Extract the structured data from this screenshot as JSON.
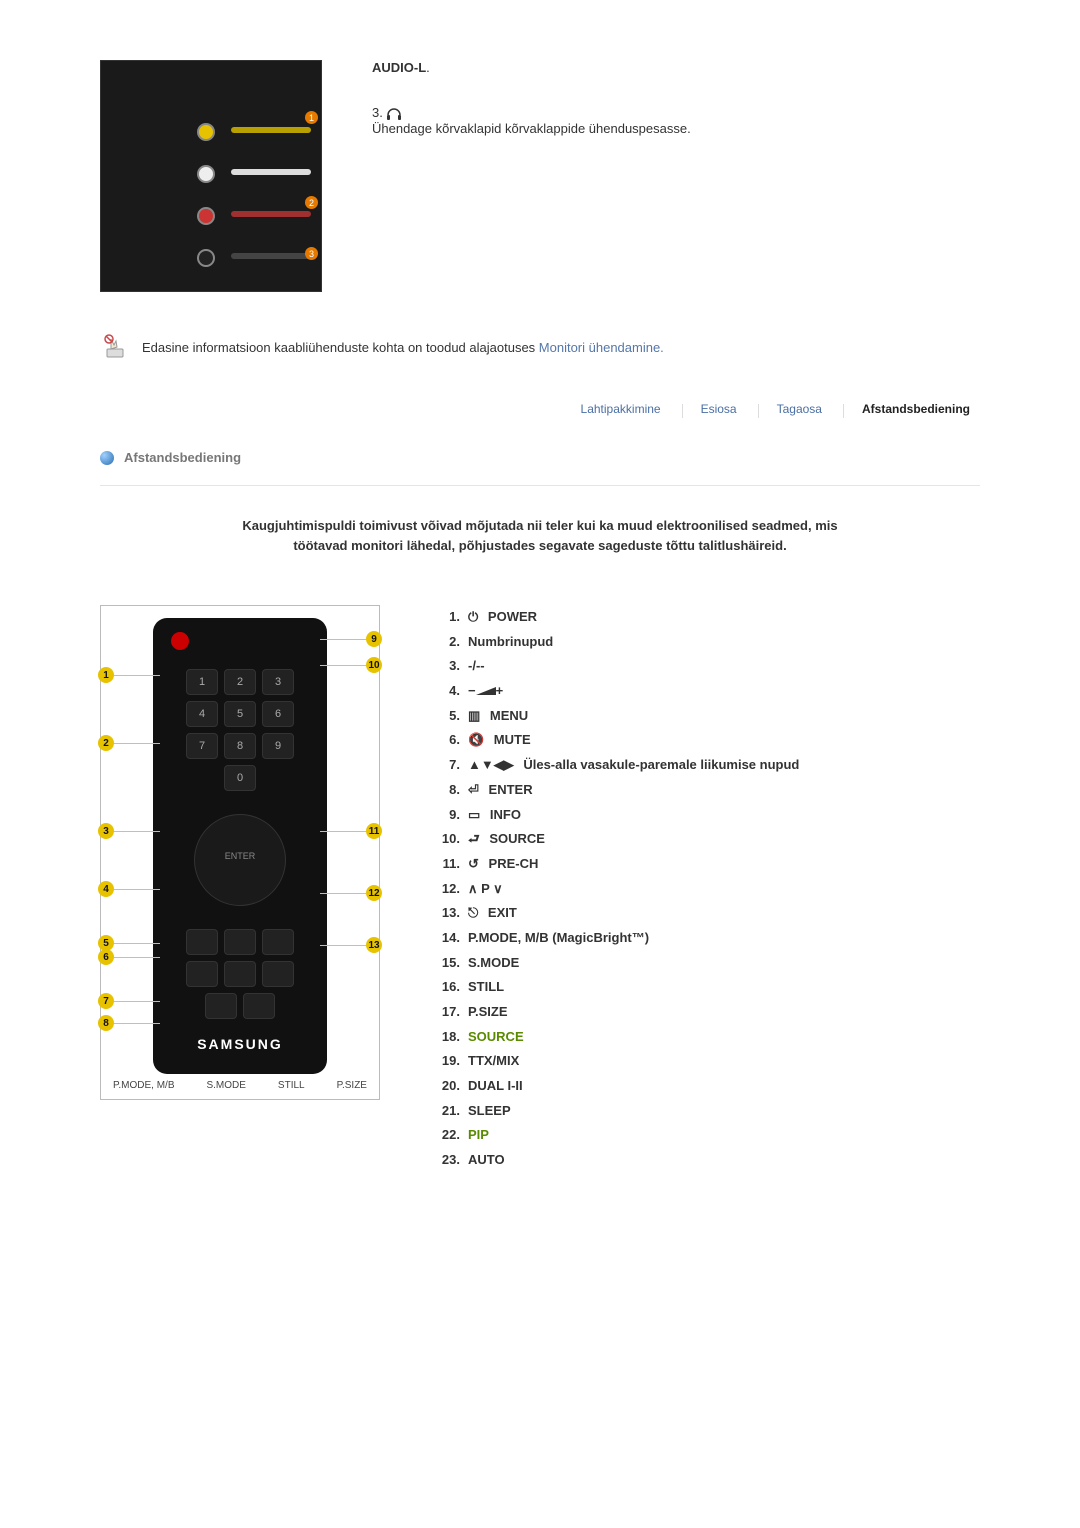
{
  "top": {
    "audio_title": "AUDIO-L",
    "suffix": ".",
    "step_number": "3.",
    "step_text": "Ühendage kõrvaklapid kõrvaklappide ühenduspesasse."
  },
  "note": {
    "prefix": "Edasine informatsioon kaabliühenduste kohta on toodud alajaotuses ",
    "link": "Monitori ühendamine.",
    "cursor_icon_color": "#c94a4a"
  },
  "tabs": {
    "items": [
      "Lahtipakkimine",
      "Esiosa",
      "Tagaosa",
      "Afstandsbediening"
    ],
    "active_index": 3
  },
  "section": {
    "title": "Afstandsbediening"
  },
  "intro": {
    "line1": "Kaugjuhtimispuldi toimivust võivad mõjutada nii teler kui ka muud elektroonilised seadmed, mis",
    "line2": "töötavad monitori lähedal, põhjustades segavate sageduste tõttu talitlushäireid."
  },
  "remote": {
    "brand": "SAMSUNG",
    "footer_labels": [
      "P.MODE, M/B",
      "S.MODE",
      "STILL",
      "P.SIZE"
    ],
    "left_markers": [
      1,
      2,
      3,
      4,
      5,
      6,
      7,
      8
    ],
    "right_markers": [
      9,
      10,
      11,
      12,
      13
    ],
    "nav_label": "ENTER",
    "nums": [
      "1",
      "2",
      "3",
      "4",
      "5",
      "6",
      "7",
      "8",
      "9",
      "0"
    ]
  },
  "functions": [
    {
      "n": "1.",
      "icon": "power",
      "label": "POWER"
    },
    {
      "n": "2.",
      "icon": "",
      "label": "Numbrinupud"
    },
    {
      "n": "3.",
      "icon": "",
      "label": "-/--"
    },
    {
      "n": "4.",
      "icon": "volbar",
      "label": ""
    },
    {
      "n": "5.",
      "icon": "menu",
      "label": "MENU"
    },
    {
      "n": "6.",
      "icon": "mute",
      "label": "MUTE"
    },
    {
      "n": "7.",
      "icon": "arrows",
      "label": "Üles-alla vasakule-paremale liikumise nupud"
    },
    {
      "n": "8.",
      "icon": "enter",
      "label": "ENTER"
    },
    {
      "n": "9.",
      "icon": "info",
      "label": "INFO"
    },
    {
      "n": "10.",
      "icon": "source",
      "label": "SOURCE"
    },
    {
      "n": "11.",
      "icon": "prech",
      "label": "PRE-CH"
    },
    {
      "n": "12.",
      "icon": "pchan",
      "label": "P"
    },
    {
      "n": "13.",
      "icon": "exit",
      "label": "EXIT"
    },
    {
      "n": "14.",
      "icon": "",
      "label": "P.MODE, M/B (MagicBright™)"
    },
    {
      "n": "15.",
      "icon": "",
      "label": "S.MODE"
    },
    {
      "n": "16.",
      "icon": "",
      "label": "STILL"
    },
    {
      "n": "17.",
      "icon": "",
      "label": "P.SIZE"
    },
    {
      "n": "18.",
      "icon": "",
      "label": "SOURCE",
      "green": true
    },
    {
      "n": "19.",
      "icon": "",
      "label": "TTX/MIX"
    },
    {
      "n": "20.",
      "icon": "",
      "label": "DUAL I-II"
    },
    {
      "n": "21.",
      "icon": "",
      "label": "SLEEP"
    },
    {
      "n": "22.",
      "icon": "",
      "label": "PIP",
      "green": true
    },
    {
      "n": "23.",
      "icon": "",
      "label": "AUTO"
    }
  ],
  "icons": {
    "power": "⏻",
    "menu": "▥",
    "mute": "🔇",
    "arrows": "▲▼◀▶",
    "enter": "⏎",
    "info": "▭",
    "source": "⮐",
    "prech": "↺",
    "pchan_pre": "∧ ",
    "pchan_post": " ∨",
    "exit": "⎋",
    "volbar_minus": "−",
    "volbar_plus": "+",
    "headphone": "🎧"
  },
  "colors": {
    "link": "#5577aa",
    "green": "#5a8a00",
    "marker": "#e6c200"
  }
}
